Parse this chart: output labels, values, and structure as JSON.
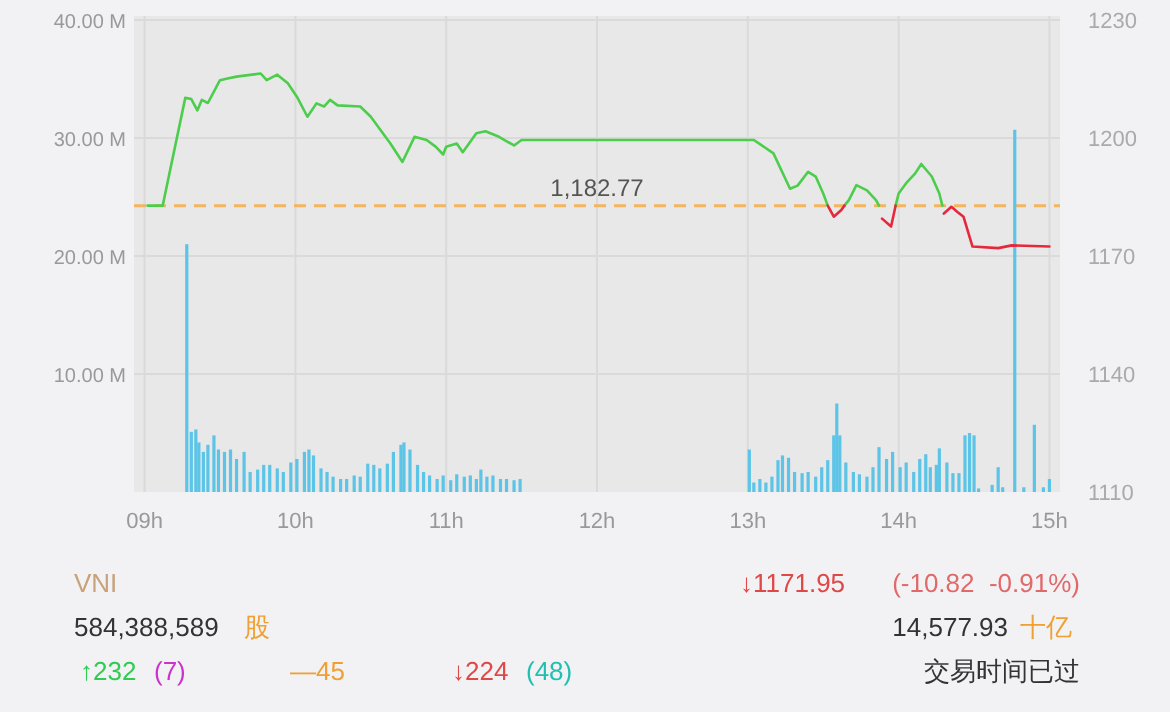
{
  "chart_data": [
    {
      "type": "line",
      "xlim": [
        8.93,
        15.07
      ],
      "xticks": [
        {
          "value": 9,
          "label": "09h"
        },
        {
          "value": 10,
          "label": "10h"
        },
        {
          "value": 11,
          "label": "11h"
        },
        {
          "value": 12,
          "label": "12h"
        },
        {
          "value": 13,
          "label": "13h"
        },
        {
          "value": 14,
          "label": "14h"
        },
        {
          "value": 15,
          "label": "15h"
        }
      ],
      "ylim": [
        0,
        40
      ],
      "yticks": [
        {
          "value": 10,
          "label": "10.00 M"
        },
        {
          "value": 20,
          "label": "20.00 M"
        },
        {
          "value": 30,
          "label": "30.00 M"
        },
        {
          "value": 40,
          "label": "40.00 M"
        }
      ],
      "y2lim": [
        1110,
        1230
      ],
      "y2ticks": [
        1110,
        1140,
        1170,
        1200,
        1230
      ],
      "grid": true,
      "ref_lines": [
        {
          "axis": "y2",
          "value": 1182.77,
          "label": "1,182.77",
          "color": "#f5b45e",
          "line_style": "dashed"
        }
      ],
      "series": [
        {
          "type": "bar",
          "color": "#5cc4e6",
          "x": [
            9.28,
            9.31,
            9.34,
            9.36,
            9.39,
            9.42,
            9.46,
            9.49,
            9.53,
            9.57,
            9.61,
            9.66,
            9.7,
            9.75,
            9.79,
            9.83,
            9.88,
            9.92,
            9.97,
            10.01,
            10.06,
            10.09,
            10.12,
            10.17,
            10.21,
            10.25,
            10.3,
            10.34,
            10.39,
            10.43,
            10.48,
            10.52,
            10.56,
            10.61,
            10.65,
            10.7,
            10.72,
            10.76,
            10.81,
            10.85,
            10.89,
            10.94,
            10.98,
            11.03,
            11.07,
            11.12,
            11.16,
            11.2,
            11.23,
            11.27,
            11.31,
            11.36,
            11.4,
            11.45,
            11.49,
            13.01,
            13.04,
            13.08,
            13.12,
            13.16,
            13.2,
            13.23,
            13.27,
            13.31,
            13.36,
            13.4,
            13.45,
            13.49,
            13.53,
            13.57,
            13.59,
            13.61,
            13.65,
            13.7,
            13.74,
            13.79,
            13.83,
            13.87,
            13.92,
            13.96,
            14.01,
            14.05,
            14.1,
            14.14,
            14.18,
            14.21,
            14.25,
            14.27,
            14.32,
            14.36,
            14.4,
            14.44,
            14.47,
            14.5,
            14.53,
            14.62,
            14.66,
            14.69,
            14.77,
            14.83,
            14.9,
            14.96,
            15.0
          ],
          "values": [
            21.0,
            5.1,
            5.3,
            4.2,
            3.4,
            4.0,
            4.8,
            3.6,
            3.4,
            3.6,
            2.8,
            3.4,
            1.7,
            1.9,
            2.3,
            2.3,
            2.0,
            1.7,
            2.5,
            2.8,
            3.4,
            3.6,
            3.1,
            2.0,
            1.7,
            1.3,
            1.1,
            1.1,
            1.4,
            1.3,
            2.4,
            2.3,
            2.0,
            2.4,
            3.4,
            4.0,
            4.2,
            3.6,
            2.3,
            1.7,
            1.4,
            1.1,
            1.4,
            1.0,
            1.5,
            1.3,
            1.4,
            1.1,
            1.9,
            1.3,
            1.4,
            1.1,
            1.1,
            1.0,
            1.1,
            3.6,
            0.8,
            1.1,
            0.8,
            1.3,
            2.7,
            3.1,
            2.9,
            1.7,
            1.6,
            1.7,
            1.3,
            2.1,
            2.7,
            4.8,
            7.5,
            4.8,
            2.5,
            1.7,
            1.5,
            1.3,
            2.1,
            3.8,
            2.8,
            3.4,
            2.1,
            2.5,
            1.7,
            2.8,
            3.2,
            2.1,
            2.3,
            3.7,
            2.5,
            1.6,
            1.6,
            4.8,
            5.0,
            4.8,
            0.3,
            0.6,
            2.1,
            0.4,
            30.7,
            0.4,
            5.7,
            0.4,
            1.1
          ]
        },
        {
          "type": "line",
          "axis": "y2",
          "color": "#4ccd4c",
          "x": [
            9.02,
            9.12,
            9.27,
            9.31,
            9.35,
            9.38,
            9.42,
            9.5,
            9.55,
            9.61,
            9.77,
            9.81,
            9.88,
            9.95,
            10.01,
            10.08,
            10.14,
            10.19,
            10.23,
            10.28,
            10.43,
            10.5,
            10.63,
            10.71,
            10.79,
            10.87,
            10.93,
            10.98,
            11.0,
            11.07,
            11.11,
            11.2,
            11.26,
            11.35,
            11.45,
            11.5,
            13.04,
            13.17,
            13.28,
            13.33,
            13.4,
            13.45,
            13.5,
            13.53,
            13.57,
            13.62,
            13.64,
            13.67,
            13.72,
            13.79,
            13.85,
            13.87,
            13.89,
            13.95,
            13.98,
            14.0,
            14.05,
            14.11,
            14.15,
            14.22,
            14.27,
            14.29
          ],
          "values": [
            1182.8,
            1182.8,
            1210.2,
            1209.9,
            1207.0,
            1209.7,
            1208.9,
            1214.7,
            1215.1,
            1215.6,
            1216.4,
            1214.7,
            1216.1,
            1213.9,
            1210.5,
            1205.4,
            1208.8,
            1208.0,
            1209.7,
            1208.3,
            1208.0,
            1205.4,
            1198.6,
            1193.9,
            1200.3,
            1199.5,
            1197.8,
            1195.8,
            1197.8,
            1198.6,
            1196.4,
            1201.2,
            1201.7,
            1200.3,
            1198.1,
            1199.5,
            1199.5,
            1196.1,
            1187.1,
            1187.9,
            1191.4,
            1190.2,
            1185.9,
            1182.8,
            null,
            null,
            1182.8,
            1184.2,
            1188.0,
            1186.7,
            1184.2,
            1182.8,
            null,
            null,
            1182.8,
            1185.9,
            1188.5,
            1191.0,
            1193.4,
            1190.2,
            1185.9,
            1182.8
          ]
        },
        {
          "type": "line",
          "axis": "y2",
          "color": "#e6283c",
          "x": [
            13.53,
            13.57,
            13.62,
            13.64,
            13.87,
            13.89,
            13.95,
            13.98,
            14.29,
            14.3,
            14.35,
            14.39,
            14.43,
            14.49,
            14.66,
            14.75,
            15.0
          ],
          "values": [
            1182.8,
            1180.0,
            1181.7,
            1182.8,
            null,
            1179.5,
            1177.5,
            1182.8,
            null,
            1180.8,
            1182.5,
            1181.2,
            1180.0,
            1172.4,
            1172.0,
            1172.7,
            1172.4
          ]
        }
      ]
    },
    {
      "type": "other",
      "annotations": [
        "VNI",
        "↓1171.95",
        "(-10.82  -0.91%)",
        "584,388,589",
        "股",
        "14,577.93",
        "十亿",
        "↑232",
        "(7)",
        "—45",
        "↓224",
        "(48)",
        "交易时间已过"
      ]
    }
  ]
}
